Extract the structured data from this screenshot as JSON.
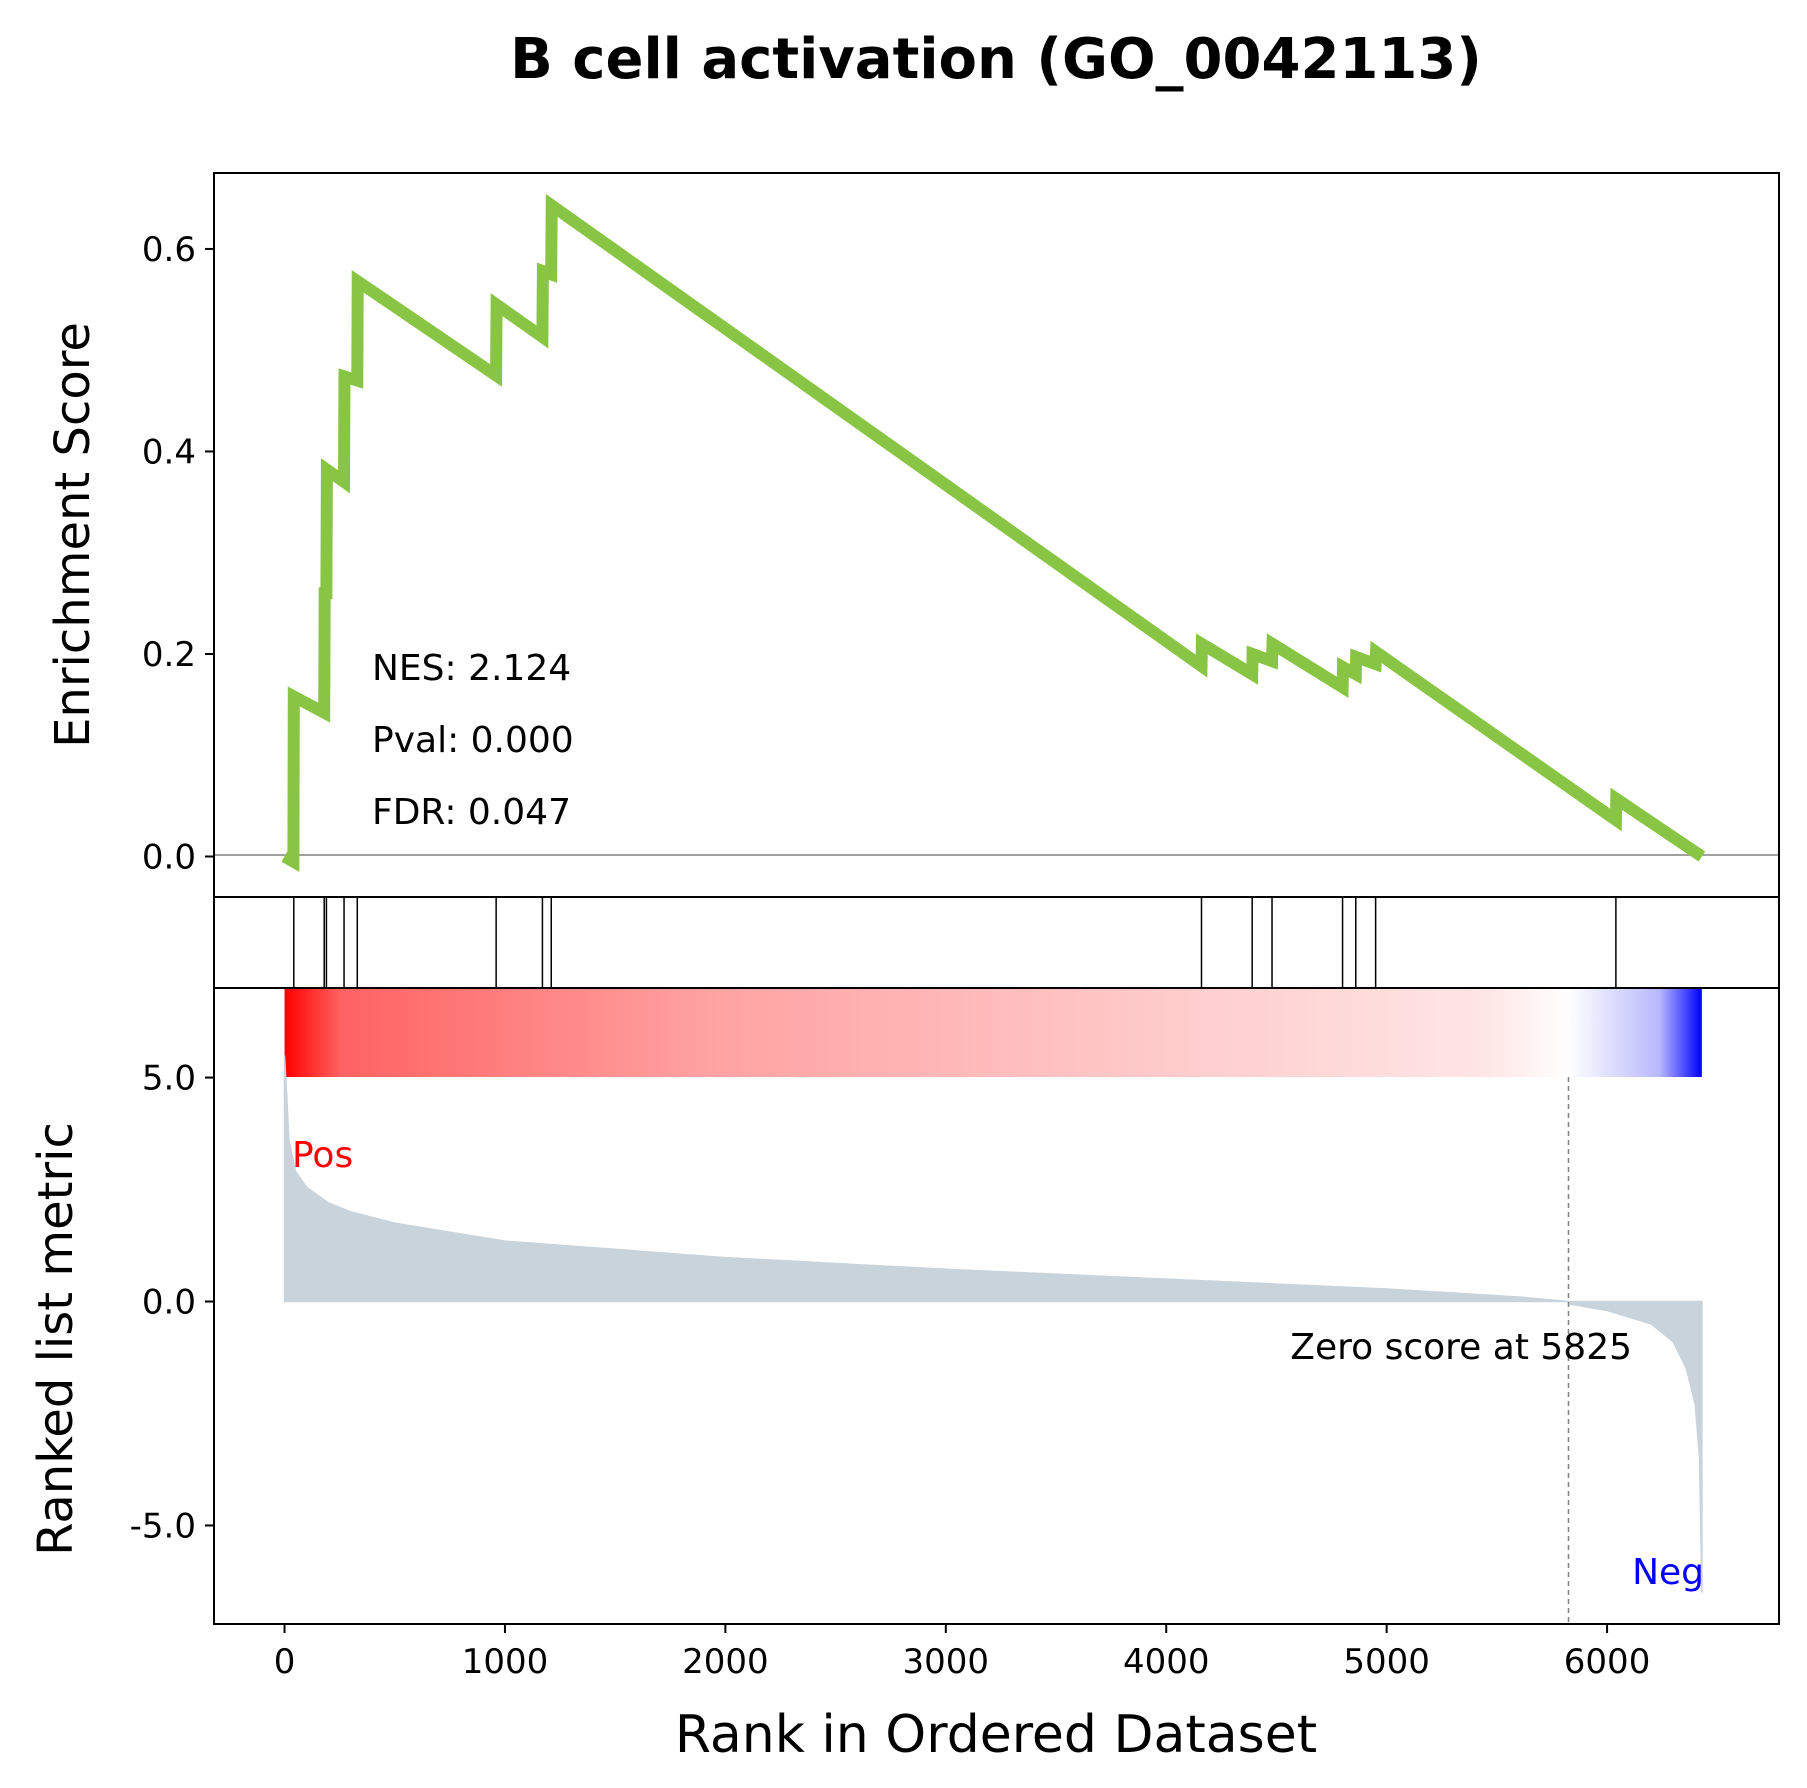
{
  "chart_data": {
    "type": "line",
    "title": "B cell activation (GO_0042113)",
    "xlabel": "Rank in Ordered Dataset",
    "xlim": [
      -320,
      6780
    ],
    "xticks": [
      0,
      1000,
      2000,
      3000,
      4000,
      5000,
      6000
    ],
    "colors": {
      "es_line": "#88c544",
      "hits": "#000000",
      "metric_fill": "#c9d3dc",
      "pos": "#ff0000",
      "neg": "#0000ff",
      "baseline": "#808080"
    },
    "enrichment": {
      "ylabel": "Enrichment Score",
      "ylim": [
        -0.04,
        0.675
      ],
      "yticks": [
        0.0,
        0.2,
        0.4,
        0.6
      ],
      "ytick_labels": [
        "0.0",
        "0.2",
        "0.4",
        "0.6"
      ],
      "points": [
        [
          0,
          0.0
        ],
        [
          40,
          -0.005
        ],
        [
          42,
          0.158
        ],
        [
          180,
          0.142
        ],
        [
          182,
          0.26
        ],
        [
          190,
          0.26
        ],
        [
          192,
          0.382
        ],
        [
          270,
          0.37
        ],
        [
          272,
          0.474
        ],
        [
          330,
          0.47
        ],
        [
          332,
          0.568
        ],
        [
          960,
          0.475
        ],
        [
          962,
          0.545
        ],
        [
          1170,
          0.513
        ],
        [
          1172,
          0.578
        ],
        [
          1210,
          0.575
        ],
        [
          1212,
          0.643
        ],
        [
          4160,
          0.188
        ],
        [
          4162,
          0.21
        ],
        [
          4390,
          0.18
        ],
        [
          4392,
          0.2
        ],
        [
          4480,
          0.193
        ],
        [
          4482,
          0.21
        ],
        [
          4800,
          0.167
        ],
        [
          4802,
          0.187
        ],
        [
          4860,
          0.18
        ],
        [
          4862,
          0.197
        ],
        [
          4950,
          0.19
        ],
        [
          4952,
          0.202
        ],
        [
          6040,
          0.036
        ],
        [
          6042,
          0.057
        ],
        [
          6430,
          0.0
        ]
      ],
      "annotations": [
        "NES: 2.124",
        "Pval: 0.000",
        "FDR: 0.047"
      ]
    },
    "hits": [
      42,
      180,
      190,
      270,
      330,
      960,
      1170,
      1210,
      4160,
      4390,
      4480,
      4800,
      4860,
      4950,
      6040
    ],
    "heatmap": {
      "x_start": 0,
      "x_end": 6430,
      "zero_at": 5825
    },
    "ranked_metric": {
      "ylabel": "Ranked list metric",
      "ylim": [
        -7.2,
        7.0
      ],
      "yticks": [
        5.0,
        0.0,
        -5.0
      ],
      "ytick_labels": [
        "5.0",
        "0.0",
        "-5.0"
      ],
      "points": [
        [
          0,
          5.5
        ],
        [
          10,
          4.6
        ],
        [
          20,
          3.6
        ],
        [
          50,
          2.9
        ],
        [
          100,
          2.55
        ],
        [
          200,
          2.2
        ],
        [
          300,
          2.0
        ],
        [
          500,
          1.75
        ],
        [
          1000,
          1.35
        ],
        [
          2000,
          0.98
        ],
        [
          3000,
          0.72
        ],
        [
          4000,
          0.5
        ],
        [
          5000,
          0.28
        ],
        [
          5600,
          0.1
        ],
        [
          5825,
          0.0
        ],
        [
          5826,
          -0.05
        ],
        [
          6000,
          -0.2
        ],
        [
          6200,
          -0.5
        ],
        [
          6300,
          -0.9
        ],
        [
          6360,
          -1.5
        ],
        [
          6400,
          -2.3
        ],
        [
          6420,
          -3.5
        ],
        [
          6430,
          -6.5
        ]
      ],
      "pos_label": "Pos",
      "neg_label": "Neg",
      "zero_label": "Zero score at 5825",
      "zero_rank": 5825
    }
  }
}
